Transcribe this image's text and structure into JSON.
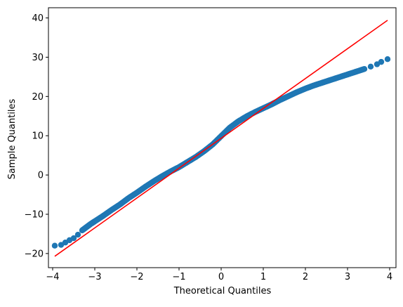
{
  "chart_data": {
    "type": "scatter",
    "title": "",
    "xlabel": "Theoretical Quantiles",
    "ylabel": "Sample Quantiles",
    "xlim": [
      -4.1,
      4.15
    ],
    "ylim": [
      -23.6,
      42.6
    ],
    "xticks": [
      -4,
      -3,
      -2,
      -1,
      0,
      1,
      2,
      3,
      4
    ],
    "yticks": [
      -20,
      -10,
      0,
      10,
      20,
      30,
      40
    ],
    "grid": false,
    "legend": "none",
    "series": [
      {
        "kind": "points",
        "color": "#1f77b4",
        "x": [
          -3.95,
          -3.8,
          -3.7,
          -3.6,
          -3.5,
          -3.4,
          -3.3,
          -3.2,
          -3.1,
          -3.0,
          -2.8,
          -2.6,
          -2.4,
          -2.2,
          -2.0,
          -1.8,
          -1.6,
          -1.4,
          -1.2,
          -1.0,
          -0.8,
          -0.6,
          -0.4,
          -0.2,
          0.0,
          0.2,
          0.4,
          0.6,
          0.8,
          1.0,
          1.2,
          1.4,
          1.6,
          1.8,
          2.0,
          2.2,
          2.4,
          2.6,
          2.8,
          3.0,
          3.2,
          3.4,
          3.55,
          3.7,
          3.8,
          3.95
        ],
        "y": [
          -18.0,
          -17.8,
          -17.2,
          -16.6,
          -16.1,
          -15.2,
          -14.1,
          -13.3,
          -12.5,
          -11.8,
          -10.4,
          -8.9,
          -7.5,
          -5.9,
          -4.5,
          -3.0,
          -1.6,
          -0.3,
          0.9,
          2.0,
          3.3,
          4.6,
          6.1,
          7.8,
          9.9,
          12.0,
          13.6,
          14.9,
          16.0,
          17.0,
          18.0,
          19.1,
          20.1,
          21.1,
          22.0,
          22.8,
          23.5,
          24.2,
          24.9,
          25.6,
          26.3,
          27.0,
          27.6,
          28.2,
          28.8,
          29.5
        ]
      },
      {
        "kind": "reference-line",
        "color": "#ff0000",
        "x": [
          -3.95,
          3.95
        ],
        "y": [
          -20.7,
          39.4
        ]
      }
    ]
  }
}
